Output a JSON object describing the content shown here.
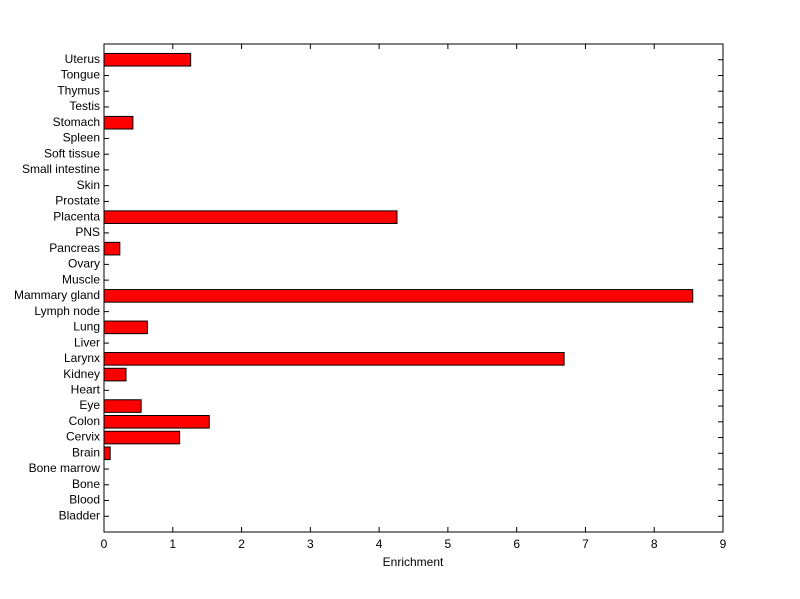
{
  "chart_data": {
    "type": "barh",
    "xlabel": "Enrichment",
    "categories": [
      "Bladder",
      "Blood",
      "Bone",
      "Bone marrow",
      "Brain",
      "Cervix",
      "Colon",
      "Eye",
      "Heart",
      "Kidney",
      "Larynx",
      "Liver",
      "Lung",
      "Lymph node",
      "Mammary gland",
      "Muscle",
      "Ovary",
      "Pancreas",
      "PNS",
      "Placenta",
      "Prostate",
      "Skin",
      "Small intestine",
      "Soft tissue",
      "Spleen",
      "Stomach",
      "Testis",
      "Thymus",
      "Tongue",
      "Uterus"
    ],
    "values": [
      0,
      0,
      0,
      0,
      0.09,
      1.1,
      1.53,
      0.54,
      0,
      0.32,
      6.69,
      0,
      0.63,
      0,
      8.56,
      0,
      0,
      0.23,
      0,
      4.26,
      0,
      0,
      0,
      0,
      0,
      0.42,
      0,
      0,
      0,
      1.26
    ],
    "color": "#ff0000",
    "xlim": [
      0,
      9
    ],
    "xticks": [
      0,
      1,
      2,
      3,
      4,
      5,
      6,
      7,
      8,
      9
    ]
  }
}
